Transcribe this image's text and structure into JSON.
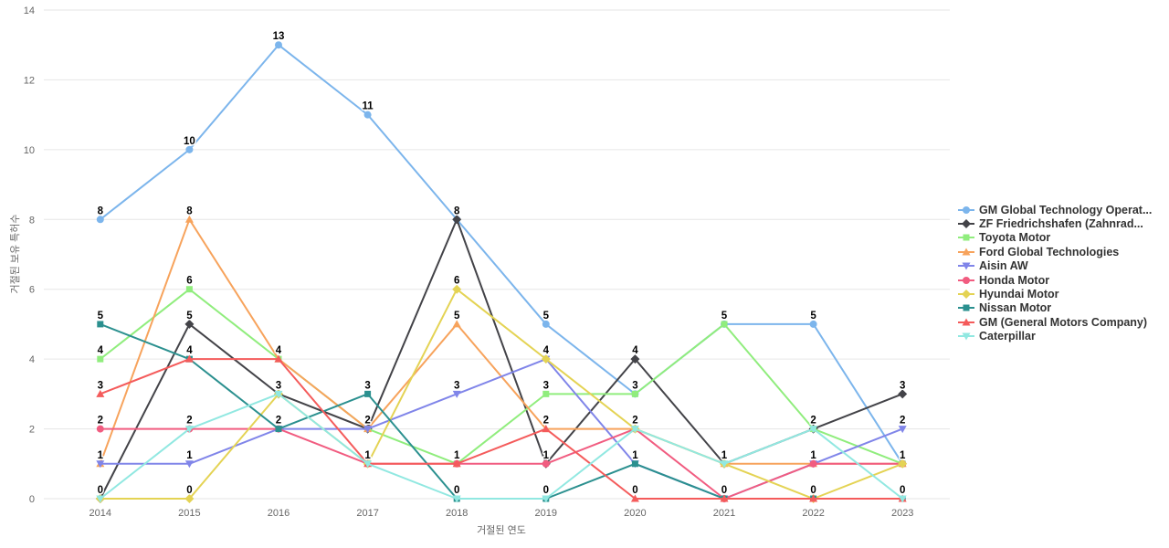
{
  "chart_data": {
    "type": "line",
    "categories": [
      "2014",
      "2015",
      "2016",
      "2017",
      "2018",
      "2019",
      "2020",
      "2021",
      "2022",
      "2023"
    ],
    "series": [
      {
        "name": "GM Global Technology Operat...",
        "color": "#7cb5ec",
        "marker": "circle",
        "values": [
          8,
          10,
          13,
          11,
          8,
          5,
          3,
          5,
          5,
          1
        ]
      },
      {
        "name": "ZF Friedrichshafen (Zahnrad...",
        "color": "#434348",
        "marker": "diamond",
        "values": [
          0,
          5,
          3,
          2,
          8,
          1,
          4,
          1,
          2,
          3
        ]
      },
      {
        "name": "Toyota Motor",
        "color": "#90ed7d",
        "marker": "square",
        "values": [
          4,
          6,
          4,
          2,
          1,
          3,
          3,
          5,
          2,
          1
        ]
      },
      {
        "name": "Ford Global Technologies",
        "color": "#f7a35c",
        "marker": "triangle",
        "values": [
          1,
          8,
          4,
          2,
          5,
          2,
          2,
          1,
          1,
          1
        ]
      },
      {
        "name": "Aisin AW",
        "color": "#8085e9",
        "marker": "triangle-down",
        "values": [
          1,
          1,
          2,
          2,
          3,
          4,
          1,
          0,
          1,
          2
        ]
      },
      {
        "name": "Honda Motor",
        "color": "#f15c80",
        "marker": "circle",
        "values": [
          2,
          2,
          2,
          1,
          1,
          1,
          2,
          0,
          1,
          1
        ]
      },
      {
        "name": "Hyundai Motor",
        "color": "#e4d354",
        "marker": "diamond",
        "values": [
          0,
          0,
          3,
          1,
          6,
          4,
          2,
          1,
          0,
          1
        ]
      },
      {
        "name": "Nissan Motor",
        "color": "#2b908f",
        "marker": "square",
        "values": [
          5,
          4,
          2,
          3,
          0,
          0,
          1,
          0,
          0,
          0
        ]
      },
      {
        "name": "GM (General Motors Company)",
        "color": "#f45b5b",
        "marker": "triangle",
        "values": [
          3,
          4,
          4,
          1,
          1,
          2,
          0,
          0,
          0,
          0
        ]
      },
      {
        "name": "Caterpillar",
        "color": "#91e8e1",
        "marker": "triangle-down",
        "values": [
          0,
          2,
          3,
          1,
          0,
          0,
          2,
          1,
          2,
          0
        ]
      }
    ],
    "title": "",
    "xlabel": "거절된 연도",
    "ylabel": "거절된 보유 특허수",
    "ylim": [
      0,
      14
    ],
    "yticks": [
      0,
      2,
      4,
      6,
      8,
      10,
      12,
      14
    ],
    "grid": "horizontal",
    "legend_position": "right",
    "data_labels": true
  },
  "style": {
    "grid_color": "#e6e6e6",
    "axis_label_color": "#666666",
    "tick_label_color": "#666666",
    "data_label_color": "#000000",
    "legend_text_color": "#333333",
    "background": "#ffffff"
  }
}
